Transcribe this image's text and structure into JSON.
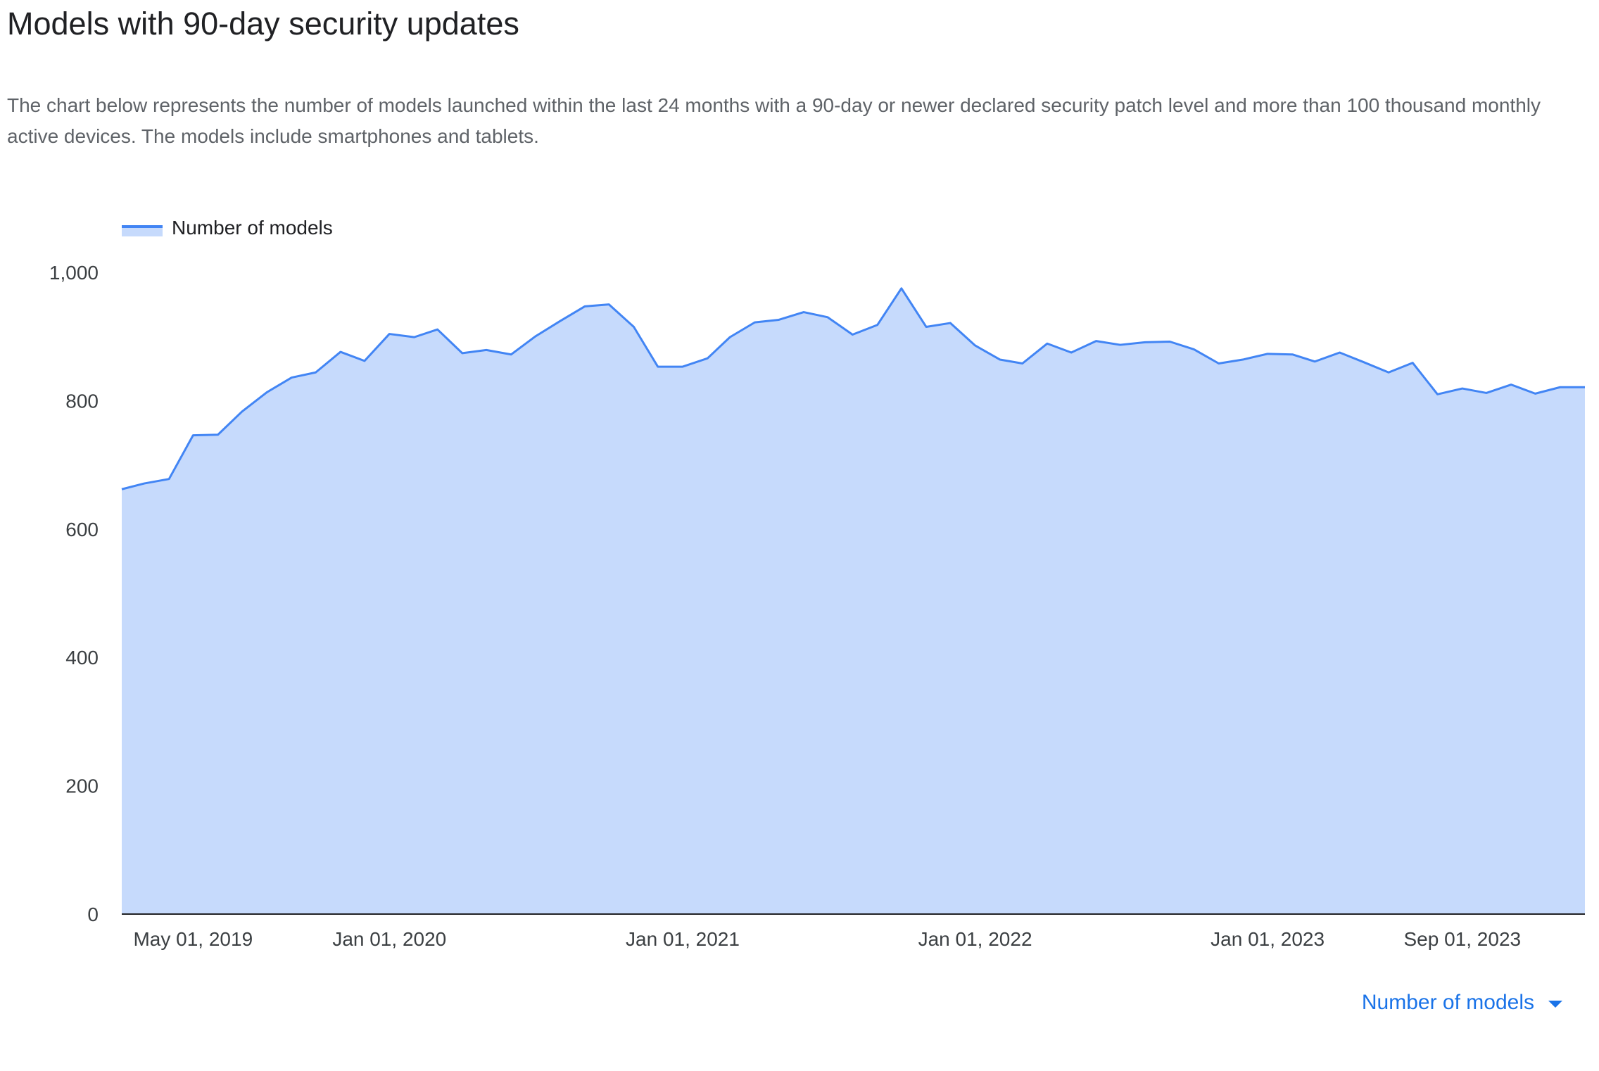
{
  "header": {
    "title": "Models with 90-day security updates",
    "description": "The chart below represents the number of models launched within the last 24 months with a 90-day or newer declared security patch level and more than 100 thousand monthly active devices. The models include smartphones and tablets."
  },
  "controls": {
    "metric_select_label": "Number of models"
  },
  "colors": {
    "line": "#4285f4",
    "area": "#c6dafc",
    "axis": "#202124",
    "link": "#1a73e8"
  },
  "chart_data": {
    "type": "area",
    "title": "",
    "xlabel": "",
    "ylabel": "",
    "legend": {
      "entries": [
        "Number of models"
      ],
      "position": "top-left"
    },
    "grid": false,
    "ylim": [
      0,
      1000
    ],
    "y_ticks": [
      0,
      200,
      400,
      600,
      800,
      1000
    ],
    "y_tick_labels": [
      "0",
      "200",
      "400",
      "600",
      "800",
      "1,000"
    ],
    "x_ticks": [
      "2019-05-01",
      "2020-01-01",
      "2021-01-01",
      "2022-01-01",
      "2023-01-01",
      "2023-09-01"
    ],
    "x_tick_labels": [
      "May 01, 2019",
      "Jan 01, 2020",
      "Jan 01, 2021",
      "Jan 01, 2022",
      "Jan 01, 2023",
      "Sep 01, 2023"
    ],
    "xlim": [
      "2019-02-01",
      "2024-02-01"
    ],
    "series": [
      {
        "name": "Number of models",
        "x": [
          "2019-02-01",
          "2019-03-01",
          "2019-04-01",
          "2019-05-01",
          "2019-06-01",
          "2019-07-01",
          "2019-08-01",
          "2019-09-01",
          "2019-10-01",
          "2019-11-01",
          "2019-12-01",
          "2020-01-01",
          "2020-02-01",
          "2020-03-01",
          "2020-04-01",
          "2020-05-01",
          "2020-06-01",
          "2020-07-01",
          "2020-08-01",
          "2020-09-01",
          "2020-10-01",
          "2020-11-01",
          "2020-12-01",
          "2021-01-01",
          "2021-02-01",
          "2021-03-01",
          "2021-04-01",
          "2021-05-01",
          "2021-06-01",
          "2021-07-01",
          "2021-08-01",
          "2021-09-01",
          "2021-10-01",
          "2021-11-01",
          "2021-12-01",
          "2022-01-01",
          "2022-02-01",
          "2022-03-01",
          "2022-04-01",
          "2022-05-01",
          "2022-06-01",
          "2022-07-01",
          "2022-08-01",
          "2022-09-01",
          "2022-10-01",
          "2022-11-01",
          "2022-12-01",
          "2023-01-01",
          "2023-02-01",
          "2023-03-01",
          "2023-04-01",
          "2023-05-01",
          "2023-06-01",
          "2023-07-01",
          "2023-08-01",
          "2023-09-01",
          "2023-10-01",
          "2023-11-01",
          "2023-12-01",
          "2024-01-01",
          "2024-02-01"
        ],
        "values": [
          662,
          671,
          678,
          746,
          747,
          783,
          813,
          836,
          844,
          876,
          862,
          904,
          899,
          911,
          874,
          879,
          872,
          900,
          924,
          947,
          950,
          915,
          853,
          853,
          866,
          899,
          922,
          926,
          938,
          930,
          903,
          918,
          975,
          915,
          921,
          886,
          864,
          858,
          889,
          875,
          893,
          887,
          891,
          892,
          880,
          858,
          864,
          873,
          872,
          861,
          875,
          860,
          844,
          859,
          810,
          819,
          812,
          825,
          811,
          821,
          821
        ]
      }
    ]
  }
}
